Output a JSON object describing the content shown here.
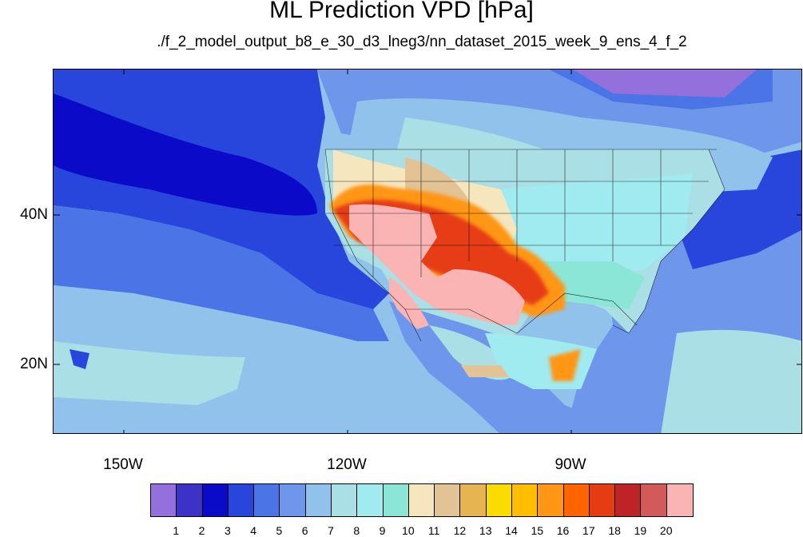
{
  "title": "ML Prediction VPD [hPa]",
  "subtitle": "./f_2_model_output_b8_e_30_d3_lneg3/nn_dataset_2015_week_9_ens_4_f_2",
  "lat_labels": [
    "40N",
    "20N"
  ],
  "lon_labels": [
    "150W",
    "120W",
    "90W"
  ],
  "colorbar": {
    "labels": [
      "1",
      "2",
      "3",
      "4",
      "5",
      "6",
      "7",
      "8",
      "9",
      "10",
      "11",
      "12",
      "13",
      "14",
      "15",
      "16",
      "17",
      "18",
      "19",
      "20"
    ],
    "colors": [
      "#9370DB",
      "#3C32C8",
      "#0A0AC8",
      "#2846DC",
      "#4B74E6",
      "#6E96EB",
      "#91C2EB",
      "#AADFE6",
      "#A0EBF0",
      "#8CE6D7",
      "#F5E6BE",
      "#E1C396",
      "#E6B450",
      "#FADC00",
      "#FFBE00",
      "#FF9614",
      "#FF6400",
      "#E63C14",
      "#BE2328",
      "#D25A5A",
      "#FAB4B4"
    ]
  }
}
